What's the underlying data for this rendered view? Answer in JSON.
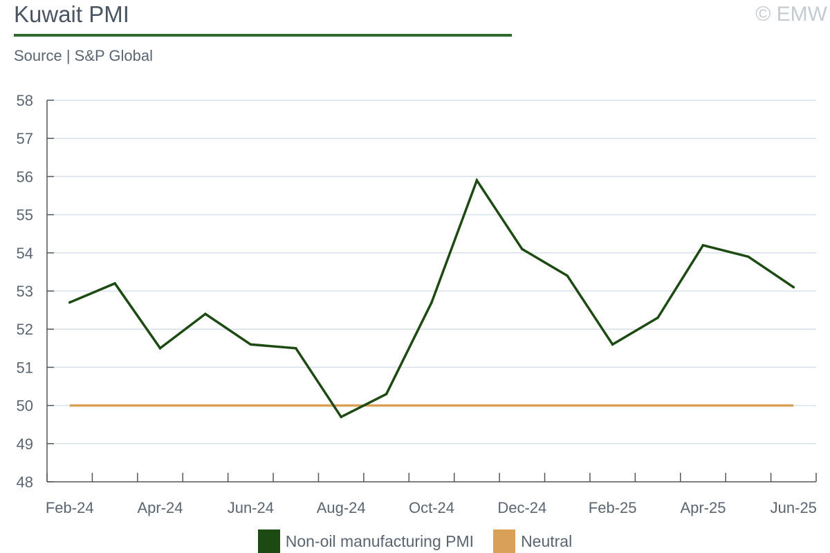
{
  "header": {
    "title": "Kuwait PMI",
    "subtitle": "Source | S&P Global",
    "watermark": "© EMW"
  },
  "colors": {
    "pmi_line": "#1d4a12",
    "neutral_line": "#d9a057",
    "grid": "#d6e1ec",
    "axis": "#555555",
    "title_rule": "#2f6b2f"
  },
  "chart_data": {
    "type": "line",
    "title": "Kuwait PMI",
    "x": [
      "Feb-24",
      "Mar-24",
      "Apr-24",
      "May-24",
      "Jun-24",
      "Jul-24",
      "Aug-24",
      "Sep-24",
      "Oct-24",
      "Nov-24",
      "Dec-24",
      "Jan-25",
      "Feb-25",
      "Mar-25",
      "Apr-25",
      "May-25",
      "Jun-25"
    ],
    "x_tick_labels": [
      "Feb-24",
      "Apr-24",
      "Jun-24",
      "Aug-24",
      "Oct-24",
      "Dec-24",
      "Feb-25",
      "Apr-25",
      "Jun-25"
    ],
    "series": [
      {
        "name": "Non-oil manufacturing PMI",
        "values": [
          52.7,
          53.2,
          51.5,
          52.4,
          51.6,
          51.5,
          49.7,
          50.3,
          52.7,
          55.9,
          54.1,
          53.4,
          51.6,
          52.3,
          54.2,
          53.9,
          53.1
        ]
      },
      {
        "name": "Neutral",
        "values": [
          50,
          50,
          50,
          50,
          50,
          50,
          50,
          50,
          50,
          50,
          50,
          50,
          50,
          50,
          50,
          50,
          50
        ]
      }
    ],
    "ylim": [
      48,
      58
    ],
    "y_ticks": [
      48,
      49,
      50,
      51,
      52,
      53,
      54,
      55,
      56,
      57,
      58
    ],
    "grid": true,
    "legend": "bottom"
  }
}
